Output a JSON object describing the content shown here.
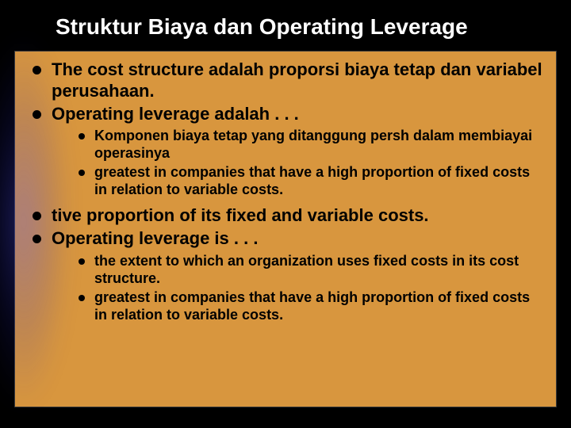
{
  "slide": {
    "title": "Struktur Biaya dan Operating Leverage",
    "background_color": "#000000",
    "box_color": "#d8963e",
    "title_color": "#ffffff",
    "text_color": "#000000",
    "bullet_color": "#000000",
    "main_fontsize": 22,
    "sub_fontsize": 18,
    "title_fontsize": 28,
    "bullets": [
      {
        "text": "The cost structure adalah proporsi biaya tetap dan variabel perusahaan.",
        "sub": []
      },
      {
        "text": "Operating leverage adalah . . .",
        "sub": [
          "Komponen biaya tetap yang ditanggung persh dalam membiayai operasinya",
          "greatest in companies that have a high proportion of fixed costs in relation to variable costs."
        ]
      },
      {
        "text": "tive proportion of its fixed and variable costs.",
        "sub": []
      },
      {
        "text": "Operating leverage is . . .",
        "sub": [
          "the extent to which an organization uses fixed costs in its cost structure.",
          "greatest in companies that have a high proportion of fixed costs in relation to variable costs."
        ]
      }
    ]
  }
}
